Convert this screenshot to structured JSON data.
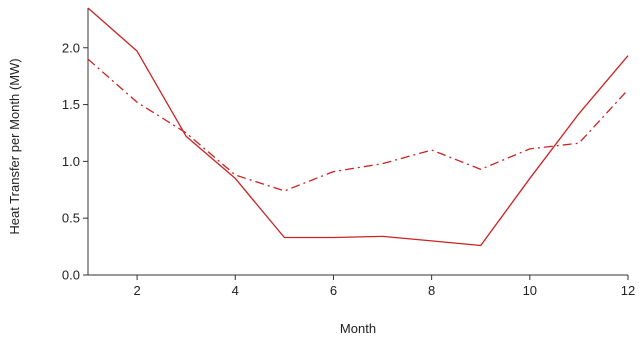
{
  "chart_data": {
    "type": "line",
    "title": "",
    "xlabel": "Month",
    "ylabel": "Heat Transfer per Month (MW)",
    "xlim": [
      1,
      12
    ],
    "ylim": [
      0,
      2.35
    ],
    "x_ticks": [
      2,
      4,
      6,
      8,
      10,
      12
    ],
    "y_ticks": [
      0.0,
      0.5,
      1.0,
      1.5,
      2.0
    ],
    "x_tick_labels": [
      "2",
      "4",
      "6",
      "8",
      "10",
      "12"
    ],
    "y_tick_labels": [
      "0.0",
      "0.5",
      "1.0",
      "1.5",
      "2.0"
    ],
    "grid": false,
    "legend": "none",
    "x": [
      1,
      2,
      3,
      4,
      5,
      6,
      7,
      8,
      9,
      10,
      11,
      12
    ],
    "series": [
      {
        "style": "solid",
        "color": "#cc2222",
        "values": [
          2.35,
          1.97,
          1.22,
          0.85,
          0.33,
          0.33,
          0.34,
          0.3,
          0.26,
          0.85,
          1.42,
          1.93
        ]
      },
      {
        "style": "dashdot",
        "color": "#cc2222",
        "values": [
          1.9,
          1.52,
          1.25,
          0.88,
          0.74,
          0.91,
          0.98,
          1.1,
          0.93,
          1.11,
          1.16,
          1.63
        ]
      }
    ]
  }
}
